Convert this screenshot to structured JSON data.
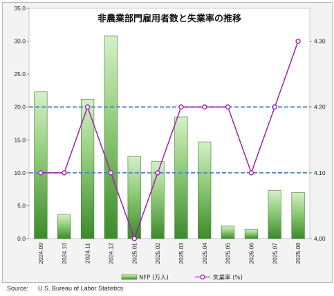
{
  "chart_data": {
    "type": "bar",
    "title": "非農業部門雇用者数と失業率の推移",
    "categories": [
      "2024.09",
      "2024.10",
      "2024.11",
      "2024.12",
      "2025.01",
      "2025.02",
      "2025.03",
      "2025.04",
      "2025.05",
      "2025.06",
      "2025.07",
      "2025.08"
    ],
    "series": [
      {
        "name": "NFP (万人)",
        "type": "bar",
        "axis": "left",
        "color": "#3f8a2e",
        "values": [
          22.3,
          3.6,
          21.2,
          30.8,
          12.5,
          11.7,
          18.5,
          14.7,
          1.9,
          1.4,
          7.3,
          7.0
        ]
      },
      {
        "name": "失業率 (%)",
        "type": "line",
        "axis": "right",
        "color": "#a020b0",
        "values": [
          4.1,
          4.1,
          4.2,
          4.1,
          4.0,
          4.1,
          4.2,
          4.2,
          4.2,
          4.1,
          4.2,
          4.3
        ]
      }
    ],
    "ylim_left": [
      0,
      35
    ],
    "yticks_left": [
      "0.0",
      "5.0",
      "10.0",
      "15.0",
      "20.0",
      "25.0",
      "30.0",
      "35.0"
    ],
    "ylim_right": [
      4.0,
      4.35
    ],
    "yticks_right": [
      "4.00",
      "4.10",
      "4.20",
      "4.30"
    ],
    "reference_lines_right": [
      4.1,
      4.2
    ],
    "grid": false,
    "legend": "bottom-center"
  },
  "source": {
    "label": "Source:",
    "text": "U.S. Bureau of Labor Statistics"
  }
}
